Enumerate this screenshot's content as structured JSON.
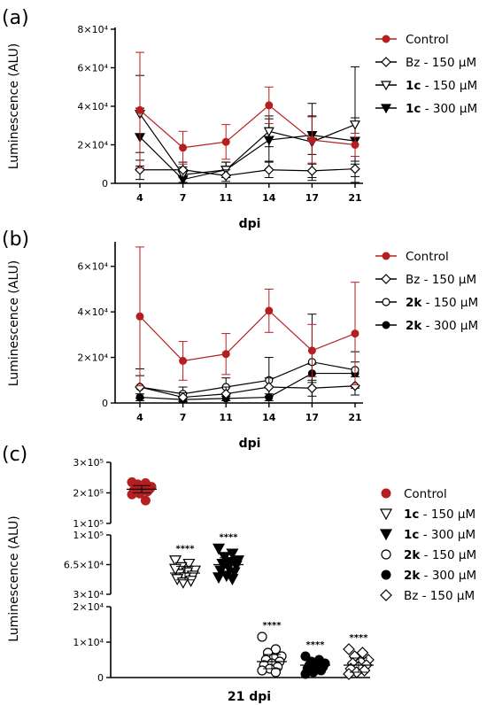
{
  "chart_data": [
    {
      "panel": "(a)",
      "type": "line",
      "xlabel": "dpi",
      "ylabel": "Luminescence (ALU)",
      "categories": [
        "4",
        "7",
        "11",
        "14",
        "17",
        "21"
      ],
      "ylim": [
        0,
        80000
      ],
      "yticks": [
        {
          "value": 0,
          "label": "0"
        },
        {
          "value": 20000,
          "label": "2×10⁴"
        },
        {
          "value": 40000,
          "label": "4×10⁴"
        },
        {
          "value": 60000,
          "label": "6×10⁴"
        },
        {
          "value": 80000,
          "label": "8×10⁴"
        }
      ],
      "legend_position": "right",
      "series": [
        {
          "name": "Control",
          "name_bold": "",
          "name_rest": "Control",
          "color": "#b51f1f",
          "marker": "filled-circle",
          "values": [
            38000,
            18500,
            21500,
            40500,
            22500,
            20000
          ],
          "err": [
            30000,
            8500,
            9000,
            9500,
            12000,
            6000
          ]
        },
        {
          "name": "Bz - 150 µM",
          "name_bold": "",
          "name_rest": "Bz - 150 µM",
          "color": "#000000",
          "marker": "open-diamond",
          "values": [
            7000,
            7000,
            4000,
            7000,
            6500,
            7500
          ],
          "err": [
            5000,
            4000,
            3000,
            4000,
            3500,
            4000
          ]
        },
        {
          "name": "1c - 150 µM",
          "name_bold": "1c",
          "name_rest": " - 150 µM",
          "color": "#000000",
          "marker": "open-triangle-down",
          "values": [
            36000,
            4500,
            7000,
            27000,
            21500,
            30500
          ],
          "err": [
            20000,
            4000,
            4000,
            8000,
            20000,
            30000
          ]
        },
        {
          "name": "1c - 300 µM",
          "name_bold": "1c",
          "name_rest": " - 300 µM",
          "color": "#000000",
          "marker": "filled-triangle-down",
          "values": [
            24000,
            2000,
            7000,
            22500,
            25000,
            22000
          ],
          "err": [
            15000,
            2000,
            4000,
            11000,
            10000,
            12000
          ]
        }
      ]
    },
    {
      "panel": "(b)",
      "type": "line",
      "xlabel": "dpi",
      "ylabel": "Luminescence (ALU)",
      "categories": [
        "4",
        "7",
        "11",
        "14",
        "17",
        "21"
      ],
      "ylim": [
        0,
        70000
      ],
      "yticks": [
        {
          "value": 0,
          "label": "0"
        },
        {
          "value": 20000,
          "label": "2×10⁴"
        },
        {
          "value": 40000,
          "label": "4×10⁴"
        },
        {
          "value": 60000,
          "label": "6×10⁴"
        }
      ],
      "legend_position": "right",
      "series": [
        {
          "name": "Control",
          "name_bold": "",
          "name_rest": "Control",
          "color": "#b51f1f",
          "marker": "filled-circle",
          "values": [
            38000,
            18500,
            21500,
            40500,
            23000,
            30500
          ],
          "err": [
            30500,
            8500,
            9000,
            9500,
            11500,
            22500
          ]
        },
        {
          "name": "Bz - 150 µM",
          "name_bold": "",
          "name_rest": "Bz - 150 µM",
          "color": "#000000",
          "marker": "open-diamond",
          "values": [
            7000,
            2500,
            4000,
            7000,
            6500,
            7500
          ],
          "err": [
            5000,
            2000,
            3000,
            4000,
            3500,
            4000
          ]
        },
        {
          "name": "2k - 150 µM",
          "name_bold": "2k",
          "name_rest": " - 150 µM",
          "color": "#000000",
          "marker": "open-circle",
          "values": [
            7000,
            4000,
            7000,
            10000,
            18000,
            14500
          ],
          "err": [
            8000,
            3000,
            4000,
            10000,
            21000,
            8000
          ]
        },
        {
          "name": "2k - 300 µM",
          "name_bold": "2k",
          "name_rest": " - 300 µM",
          "color": "#000000",
          "marker": "filled-circle-black",
          "values": [
            2500,
            1500,
            2000,
            2500,
            13000,
            13000
          ],
          "err": [
            1500,
            1000,
            1000,
            1500,
            4000,
            5000
          ]
        }
      ]
    },
    {
      "panel": "(c)",
      "type": "scatter",
      "xlabel": "21 dpi",
      "ylabel": "Luminescence  (ALU)",
      "axis_breaks": true,
      "segments": [
        {
          "ylim": [
            100000,
            300000
          ],
          "yticks": [
            {
              "value": 100000,
              "label": "1×10⁵"
            },
            {
              "value": 200000,
              "label": "2×10⁵"
            },
            {
              "value": 300000,
              "label": "3×10⁵"
            }
          ]
        },
        {
          "ylim": [
            30000,
            100000
          ],
          "yticks": [
            {
              "value": 30000,
              "label": "3×10⁴"
            },
            {
              "value": 65000,
              "label": "6.5×10⁴"
            },
            {
              "value": 100000,
              "label": "1×10⁵"
            }
          ]
        },
        {
          "ylim": [
            0,
            20000
          ],
          "yticks": [
            {
              "value": 0,
              "label": "0"
            },
            {
              "value": 10000,
              "label": "1×10⁴"
            },
            {
              "value": 20000,
              "label": "2×10⁴"
            }
          ]
        }
      ],
      "legend_position": "right",
      "significance_label": "****",
      "groups": [
        {
          "name": "Control",
          "name_bold": "",
          "name_rest": "Control",
          "color": "#b51f1f",
          "marker": "filled-circle",
          "mean": 212000,
          "sd": 12000,
          "significance": "",
          "points": [
            235000,
            232000,
            228000,
            220000,
            218000,
            215000,
            212000,
            210000,
            208000,
            205000,
            198000,
            195000,
            175000,
            222000
          ]
        },
        {
          "name": "1c - 150 µM",
          "name_bold": "1c",
          "name_rest": " - 150 µM",
          "color": "#000000",
          "marker": "open-triangle-down",
          "mean": 55000,
          "sd": 8000,
          "significance": "****",
          "points": [
            70000,
            66000,
            62000,
            58000,
            56000,
            54000,
            52000,
            50000,
            48000,
            46000,
            44000,
            60000
          ]
        },
        {
          "name": "1c - 300 µM",
          "name_bold": "1c",
          "name_rest": " - 300 µM",
          "color": "#000000",
          "marker": "filled-triangle-down",
          "mean": 65000,
          "sd": 8000,
          "significance": "****",
          "points": [
            84000,
            78000,
            74000,
            70000,
            68000,
            66000,
            64000,
            62000,
            58000,
            56000,
            52000,
            50000,
            48000
          ]
        },
        {
          "name": "2k - 150 µM",
          "name_bold": "2k",
          "name_rest": " - 150 µM",
          "color": "#000000",
          "marker": "open-circle",
          "mean": 4500,
          "sd": 2000,
          "significance": "****",
          "points": [
            11500,
            8000,
            7000,
            6000,
            5500,
            5000,
            4500,
            4000,
            3500,
            3000,
            2500,
            2000,
            1500
          ]
        },
        {
          "name": "2k - 300 µM",
          "name_bold": "2k",
          "name_rest": " - 300 µM",
          "color": "#000000",
          "marker": "filled-circle-black",
          "mean": 3500,
          "sd": 1500,
          "significance": "****",
          "points": [
            6000,
            5000,
            4500,
            4000,
            3500,
            3500,
            3000,
            3000,
            2500,
            2000,
            1500,
            1000
          ]
        },
        {
          "name": "Bz - 150 µM",
          "name_bold": "",
          "name_rest": "Bz - 150 µM",
          "color": "#000000",
          "marker": "open-diamond",
          "mean": 3500,
          "sd": 2000,
          "significance": "****",
          "points": [
            8000,
            7000,
            6000,
            5000,
            4500,
            4000,
            3500,
            3000,
            2500,
            2000,
            1500,
            1000
          ]
        }
      ]
    }
  ]
}
